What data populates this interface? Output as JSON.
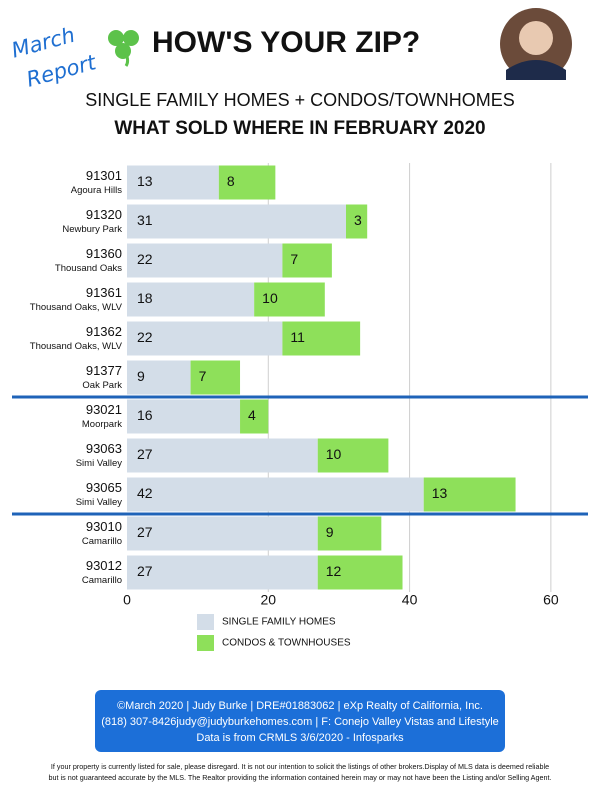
{
  "badge": {
    "line1": "March",
    "line2": "Report"
  },
  "title": "HOW'S YOUR ZIP?",
  "chart_data": {
    "type": "stacked-bar-horizontal",
    "subtitle": "SINGLE FAMILY HOMES + CONDOS/TOWNHOMES",
    "title": "WHAT SOLD WHERE IN FEBRUARY 2020",
    "categories": [
      "91301",
      "91320",
      "91360",
      "91361",
      "91362",
      "91377",
      "93021",
      "93063",
      "93065",
      "93010",
      "93012"
    ],
    "category_places": [
      "Agoura Hills",
      "Newbury Park",
      "Thousand Oaks",
      "Thousand Oaks, WLV",
      "Thousand Oaks, WLV",
      "Oak Park",
      "Moorpark",
      "Simi Valley",
      "Simi Valley",
      "Camarillo",
      "Camarillo"
    ],
    "series": [
      {
        "name": "SINGLE FAMILY HOMES",
        "color": "#d3dde8",
        "values": [
          13,
          31,
          22,
          18,
          22,
          9,
          16,
          27,
          42,
          27,
          27
        ]
      },
      {
        "name": "CONDOS & TOWNHOUSES",
        "color": "#8ee05a",
        "values": [
          8,
          3,
          7,
          10,
          11,
          7,
          4,
          10,
          13,
          9,
          12
        ]
      }
    ],
    "xlim": [
      0,
      62
    ],
    "xticks": [
      0,
      20,
      40,
      60
    ],
    "grid": true
  },
  "footer": {
    "line1": "©March 2020  |  Judy Burke  |  DRE#01883062  |  eXp Realty of California, Inc.",
    "line2": "(818) 307-8426judy@judyburkehomes.com | F: Conejo Valley Vistas and Lifestyle",
    "line3": "Data is from CRMLS 3/6/2020 - Infosparks"
  },
  "disclaimer": {
    "line1": "If your property is currently listed for sale, please disregard. It is not our intention to solicit the listings of other brokers.Display of MLS data is deemed reliable",
    "line2": "but is not guaranteed accurate by the MLS. The Realtor providing the information contained herein may or may not have been the Listing and/or Selling Agent."
  }
}
